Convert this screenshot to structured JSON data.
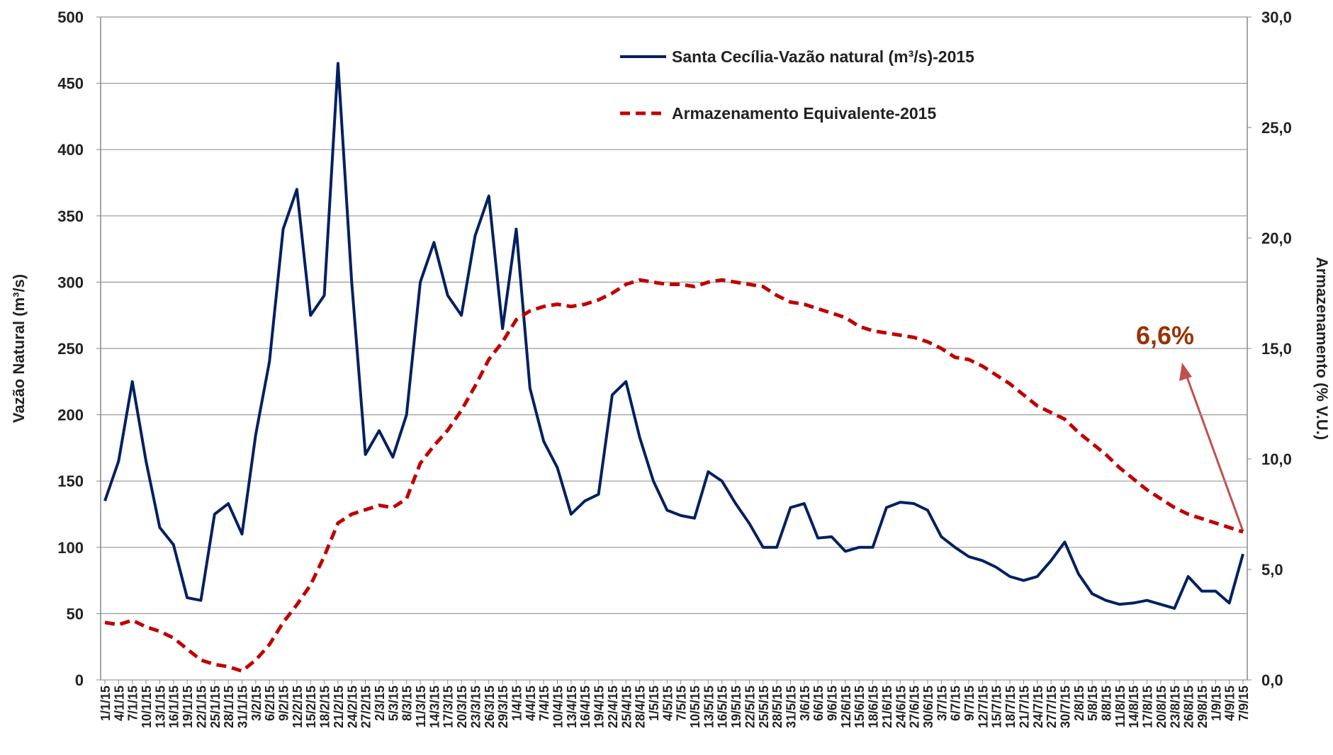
{
  "chart_data": {
    "type": "line",
    "y_label": "Vazão Natural  (m³/s)",
    "y2_label": "Armazenamento (% V.U.)",
    "annotation": "6,6%",
    "categories": [
      "1/1/15",
      "4/1/15",
      "7/1/15",
      "10/1/15",
      "13/1/15",
      "16/1/15",
      "19/1/15",
      "22/1/15",
      "25/1/15",
      "28/1/15",
      "31/1/15",
      "3/2/15",
      "6/2/15",
      "9/2/15",
      "12/2/15",
      "15/2/15",
      "18/2/15",
      "21/2/15",
      "24/2/15",
      "27/2/15",
      "2/3/15",
      "5/3/15",
      "8/3/15",
      "11/3/15",
      "14/3/15",
      "17/3/15",
      "20/3/15",
      "23/3/15",
      "26/3/15",
      "29/3/15",
      "1/4/15",
      "4/4/15",
      "7/4/15",
      "10/4/15",
      "13/4/15",
      "16/4/15",
      "19/4/15",
      "22/4/15",
      "25/4/15",
      "28/4/15",
      "1/5/15",
      "4/5/15",
      "7/5/15",
      "10/5/15",
      "13/5/15",
      "16/5/15",
      "19/5/15",
      "22/5/15",
      "25/5/15",
      "28/5/15",
      "31/5/15",
      "3/6/15",
      "6/6/15",
      "9/6/15",
      "12/6/15",
      "15/6/15",
      "18/6/15",
      "21/6/15",
      "24/6/15",
      "27/6/15",
      "30/6/15",
      "3/7/15",
      "6/7/15",
      "9/7/15",
      "12/7/15",
      "15/7/15",
      "18/7/15",
      "21/7/15",
      "24/7/15",
      "27/7/15",
      "30/7/15",
      "2/8/15",
      "5/8/15",
      "8/8/15",
      "11/8/15",
      "14/8/15",
      "17/8/15",
      "20/8/15",
      "23/8/15",
      "26/8/15",
      "29/8/15",
      "1/9/15",
      "4/9/15",
      "7/9/15"
    ],
    "series": [
      {
        "name": "Santa Cecília-Vazão natural (m³/s)-2015",
        "color": "#002060",
        "dash": false,
        "values": [
          135,
          165,
          225,
          165,
          115,
          102,
          62,
          60,
          125,
          133,
          110,
          185,
          240,
          340,
          370,
          275,
          290,
          465,
          300,
          170,
          188,
          168,
          200,
          300,
          330,
          290,
          275,
          335,
          365,
          265,
          340,
          220,
          180,
          160,
          125,
          135,
          140,
          215,
          225,
          183,
          150,
          128,
          124,
          122,
          157,
          150,
          133,
          118,
          100,
          100,
          130,
          133,
          107,
          108,
          97,
          100,
          100,
          130,
          134,
          133,
          128,
          108,
          100,
          93,
          90,
          85,
          78,
          75,
          78,
          90,
          104,
          80,
          65,
          60,
          57,
          58,
          60,
          57,
          54,
          78,
          67,
          67,
          58,
          95
        ]
      },
      {
        "name": "Armazenamento Equivalente-2015",
        "color": "#c00000",
        "dash": true,
        "axis": "y2",
        "values": [
          2.6,
          2.5,
          2.7,
          2.4,
          2.2,
          1.9,
          1.4,
          0.9,
          0.7,
          0.6,
          0.4,
          0.9,
          1.6,
          2.6,
          3.4,
          4.3,
          5.6,
          7.1,
          7.5,
          7.7,
          7.9,
          7.8,
          8.2,
          9.8,
          10.6,
          11.3,
          12.2,
          13.3,
          14.5,
          15.3,
          16.3,
          16.7,
          16.9,
          17.0,
          16.9,
          17.0,
          17.2,
          17.5,
          17.9,
          18.1,
          18.0,
          17.9,
          17.9,
          17.8,
          18.0,
          18.1,
          18.0,
          17.9,
          17.8,
          17.4,
          17.1,
          17.0,
          16.8,
          16.6,
          16.4,
          16.0,
          15.8,
          15.7,
          15.6,
          15.5,
          15.3,
          15.0,
          14.6,
          14.5,
          14.2,
          13.8,
          13.4,
          12.9,
          12.4,
          12.1,
          11.8,
          11.2,
          10.7,
          10.2,
          9.6,
          9.1,
          8.6,
          8.2,
          7.8,
          7.5,
          7.3,
          7.1,
          6.9,
          6.7
        ]
      }
    ],
    "ylim": [
      0,
      500
    ],
    "yticks": [
      0,
      50,
      100,
      150,
      200,
      250,
      300,
      350,
      400,
      450,
      500
    ],
    "y2lim": [
      0,
      30
    ],
    "y2ticks": [
      {
        "value": 0,
        "label": "0,0"
      },
      {
        "value": 5,
        "label": "5,0"
      },
      {
        "value": 10,
        "label": "10,0"
      },
      {
        "value": 15,
        "label": "15,0"
      },
      {
        "value": 20,
        "label": "20,0"
      },
      {
        "value": 25,
        "label": "25,0"
      },
      {
        "value": 30,
        "label": "30,0"
      }
    ],
    "grid": true
  }
}
